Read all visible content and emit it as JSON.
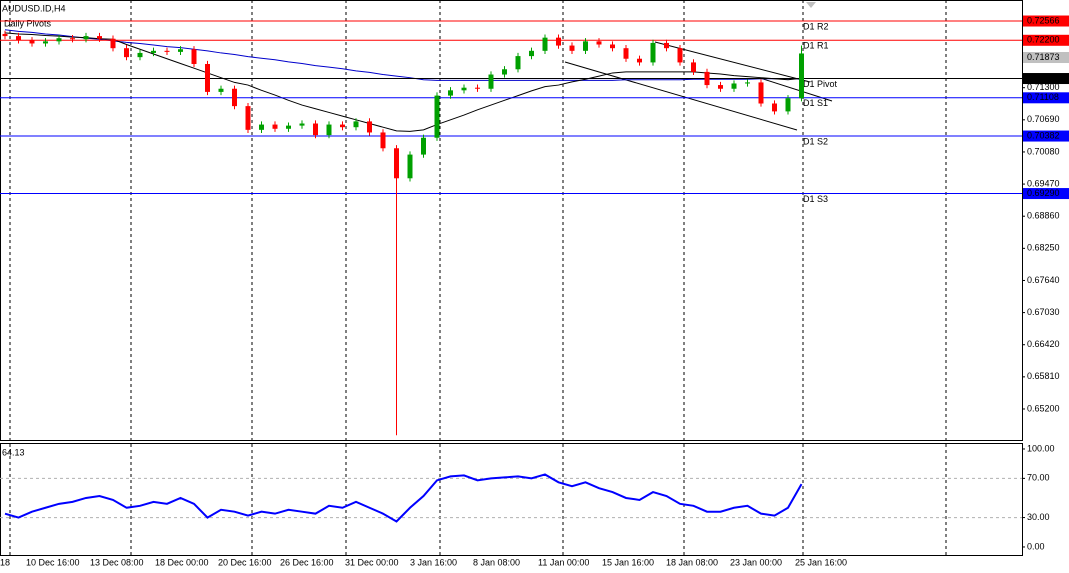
{
  "chart_data": {
    "type": "candlestick",
    "title": "AUDUSD.ID,H4",
    "indicator": "Daily Pivots",
    "open": [
      0.7232,
      0.7228,
      0.722,
      0.7214,
      0.7218,
      0.7224,
      0.7222,
      0.7228,
      0.7223,
      0.7205,
      0.7188,
      0.7196,
      0.72,
      0.7198,
      0.7203,
      0.7175,
      0.7122,
      0.7128,
      0.7095,
      0.705,
      0.706,
      0.7052,
      0.7058,
      0.7062,
      0.704,
      0.706,
      0.7055,
      0.7066,
      0.7045,
      0.7015,
      0.6958,
      0.7003,
      0.7035,
      0.7115,
      0.7125,
      0.713,
      0.7128,
      0.7155,
      0.7165,
      0.719,
      0.72,
      0.7225,
      0.721,
      0.72,
      0.7218,
      0.7212,
      0.7205,
      0.7185,
      0.7178,
      0.7215,
      0.7205,
      0.7178,
      0.716,
      0.7135,
      0.7128,
      0.7138,
      0.714,
      0.71,
      0.7085,
      0.711
    ],
    "high": [
      0.7238,
      0.7234,
      0.7226,
      0.7224,
      0.723,
      0.723,
      0.7234,
      0.7234,
      0.7229,
      0.7211,
      0.7202,
      0.7206,
      0.7206,
      0.7209,
      0.7209,
      0.7181,
      0.7134,
      0.7134,
      0.7101,
      0.7066,
      0.7066,
      0.7064,
      0.7068,
      0.7068,
      0.7066,
      0.7066,
      0.7072,
      0.7072,
      0.7051,
      0.7021,
      0.7009,
      0.7041,
      0.7121,
      0.7131,
      0.7136,
      0.7136,
      0.7161,
      0.7171,
      0.7196,
      0.7206,
      0.7231,
      0.7231,
      0.7216,
      0.7224,
      0.7224,
      0.7218,
      0.7211,
      0.7191,
      0.7221,
      0.7221,
      0.7211,
      0.7184,
      0.7166,
      0.7141,
      0.7144,
      0.7146,
      0.7146,
      0.7106,
      0.7116,
      0.721
    ],
    "low": [
      0.7222,
      0.7214,
      0.7208,
      0.7208,
      0.7212,
      0.7216,
      0.7216,
      0.7217,
      0.7199,
      0.7182,
      0.7182,
      0.719,
      0.7192,
      0.7192,
      0.7169,
      0.7116,
      0.7116,
      0.7089,
      0.7044,
      0.7044,
      0.7046,
      0.7046,
      0.7052,
      0.7034,
      0.7034,
      0.7049,
      0.7049,
      0.7039,
      0.7009,
      0.647,
      0.6952,
      0.6997,
      0.7029,
      0.7109,
      0.7119,
      0.7122,
      0.7122,
      0.7149,
      0.7159,
      0.7184,
      0.7194,
      0.7204,
      0.7194,
      0.7194,
      0.7206,
      0.7199,
      0.7179,
      0.7172,
      0.7172,
      0.7199,
      0.7172,
      0.7154,
      0.7129,
      0.7122,
      0.7122,
      0.7132,
      0.7094,
      0.7079,
      0.7079,
      0.7104
    ],
    "close": [
      0.7228,
      0.722,
      0.7214,
      0.7218,
      0.7224,
      0.7222,
      0.7228,
      0.7223,
      0.7205,
      0.7188,
      0.7196,
      0.72,
      0.7198,
      0.7203,
      0.7175,
      0.7122,
      0.7128,
      0.7095,
      0.705,
      0.706,
      0.7052,
      0.7058,
      0.7062,
      0.704,
      0.706,
      0.7055,
      0.7066,
      0.7045,
      0.7015,
      0.6958,
      0.7003,
      0.7035,
      0.7115,
      0.7125,
      0.713,
      0.7128,
      0.7155,
      0.7165,
      0.719,
      0.72,
      0.7225,
      0.721,
      0.72,
      0.7218,
      0.7212,
      0.7205,
      0.7185,
      0.7178,
      0.7215,
      0.7205,
      0.7178,
      0.716,
      0.7135,
      0.7128,
      0.7138,
      0.714,
      0.71,
      0.7085,
      0.711,
      0.7195
    ],
    "up_color": "#00a000",
    "down_color": "#ff0000",
    "moving_averages": [
      {
        "color": "#0000cc",
        "values": [
          0.724,
          0.7237,
          0.7235,
          0.7232,
          0.723,
          0.7227,
          0.7224,
          0.7222,
          0.7219,
          0.7216,
          0.7214,
          0.7211,
          0.7208,
          0.7206,
          0.7203,
          0.72,
          0.7196,
          0.7193,
          0.7189,
          0.7186,
          0.7183,
          0.7179,
          0.7176,
          0.7172,
          0.7169,
          0.7166,
          0.7162,
          0.7159,
          0.7155,
          0.7152,
          0.7149,
          0.7145,
          0.7144,
          0.7144,
          0.7144,
          0.7144,
          0.7144,
          0.7144,
          0.7144,
          0.7144,
          0.7144,
          0.7144,
          0.7144,
          0.7144,
          0.7144,
          0.7144,
          0.7145,
          0.7145,
          0.7145,
          0.7145,
          0.7145,
          0.7146,
          0.7146,
          0.7146,
          0.7146,
          0.7146,
          0.7147,
          0.7147,
          0.7147,
          0.7147
        ]
      },
      {
        "color": "#000000",
        "values": [
          0.7234,
          0.7232,
          0.7231,
          0.7229,
          0.7228,
          0.7226,
          0.7225,
          0.7223,
          0.7222,
          0.7212,
          0.7203,
          0.7194,
          0.7185,
          0.7176,
          0.7167,
          0.7158,
          0.7149,
          0.714,
          0.7135,
          0.7125,
          0.7116,
          0.7106,
          0.7097,
          0.709,
          0.7083,
          0.7076,
          0.7069,
          0.7062,
          0.7055,
          0.7048,
          0.7047,
          0.705,
          0.706,
          0.7069,
          0.7078,
          0.7088,
          0.7097,
          0.7106,
          0.7115,
          0.7124,
          0.7132,
          0.7135,
          0.7141,
          0.7146,
          0.7152,
          0.7158,
          0.716,
          0.716,
          0.716,
          0.716,
          0.716,
          0.716,
          0.7158,
          0.7156,
          0.7153,
          0.7151,
          0.7149,
          0.7147,
          0.7145,
          0.7148
        ]
      }
    ],
    "ylim": [
      0.64611,
      0.72965
    ],
    "yticks": [
      {
        "value": 0.713,
        "label": "0.71300"
      },
      {
        "value": 0.7069,
        "label": "0.70690"
      },
      {
        "value": 0.7008,
        "label": "0.70080"
      },
      {
        "value": 0.6947,
        "label": "0.69470"
      },
      {
        "value": 0.6886,
        "label": "0.68860"
      },
      {
        "value": 0.6825,
        "label": "0.68250"
      },
      {
        "value": 0.6764,
        "label": "0.67640"
      },
      {
        "value": 0.6703,
        "label": "0.67030"
      },
      {
        "value": 0.6642,
        "label": "0.66420"
      },
      {
        "value": 0.6581,
        "label": "0.65810"
      },
      {
        "value": 0.652,
        "label": "0.65200"
      }
    ],
    "levels": [
      {
        "name": "D1 R2",
        "value": 0.72566,
        "color": "#ff0000"
      },
      {
        "name": "D1 R1",
        "value": 0.722,
        "label": "0.72200",
        "color": "#ff0000"
      },
      {
        "name": "D1 Pivot",
        "value": 0.71474,
        "color": "#000000"
      },
      {
        "name": "D1 S1",
        "value": 0.71108,
        "color": "#0000ff"
      },
      {
        "name": "D1 S2",
        "value": 0.70382,
        "color": "#0000ff"
      },
      {
        "name": "D1 S3",
        "value": 0.6929,
        "label": "0.69290",
        "color": "#0000ff"
      }
    ],
    "bid": {
      "value": 0.71873,
      "color": "#c0c0c0"
    },
    "time_labels": [
      "18",
      "10 Dec 16:00",
      "13 Dec 08:00",
      "18 Dec 00:00",
      "20 Dec 16:00",
      "26 Dec 16:00",
      "31 Dec 00:00",
      "3 Jan 16:00",
      "8 Jan 08:00",
      "11 Jan 00:00",
      "15 Jan 16:00",
      "18 Jan 08:00",
      "23 Jan 00:00",
      "25 Jan 16:00"
    ],
    "rsi": {
      "color": "#0000ff",
      "values": [
        34,
        30,
        36,
        40,
        44,
        46,
        50,
        52,
        48,
        40,
        42,
        46,
        44,
        50,
        44,
        30,
        38,
        36,
        32,
        36,
        34,
        38,
        36,
        34,
        42,
        40,
        46,
        40,
        34,
        26,
        40,
        52,
        68,
        72,
        73,
        68,
        70,
        71,
        72,
        70,
        74,
        66,
        62,
        66,
        60,
        56,
        50,
        48,
        56,
        52,
        44,
        42,
        36,
        36,
        40,
        42,
        34,
        32,
        40,
        64.13
      ],
      "ylim": [
        -8.2,
        106.1
      ],
      "yticks": [
        {
          "value": 100,
          "label": "100.00"
        },
        {
          "value": 70,
          "label": "70.00"
        },
        {
          "value": 30,
          "label": "30.00"
        },
        {
          "value": 0,
          "label": "0.00"
        }
      ]
    }
  }
}
